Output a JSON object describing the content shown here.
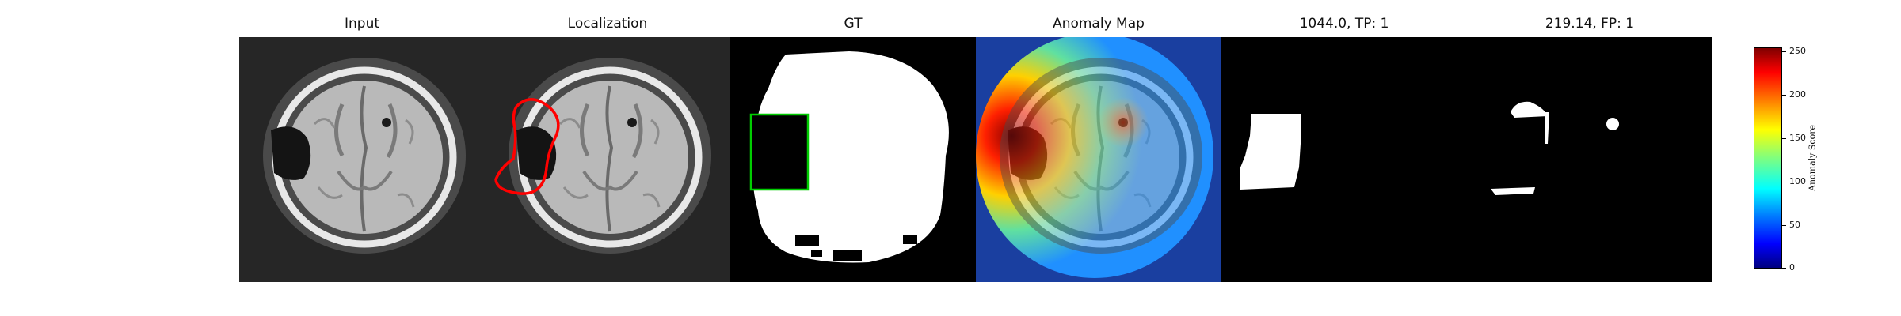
{
  "panels": {
    "input_title": "Input",
    "localization_title": "Localization",
    "gt_title": "GT",
    "anomaly_map_title": "Anomaly Map",
    "tp_title": "1044.0, TP: 1",
    "fp_title": "219.14, FP: 1"
  },
  "colorbar": {
    "label": "Anomaly Score",
    "ticks": [
      "0",
      "50",
      "100",
      "150",
      "200",
      "250"
    ]
  },
  "colors": {
    "localization_contour": "#ff0000",
    "gt_box": "#00cc00",
    "mask": "#ffffff",
    "background": "#000000"
  }
}
